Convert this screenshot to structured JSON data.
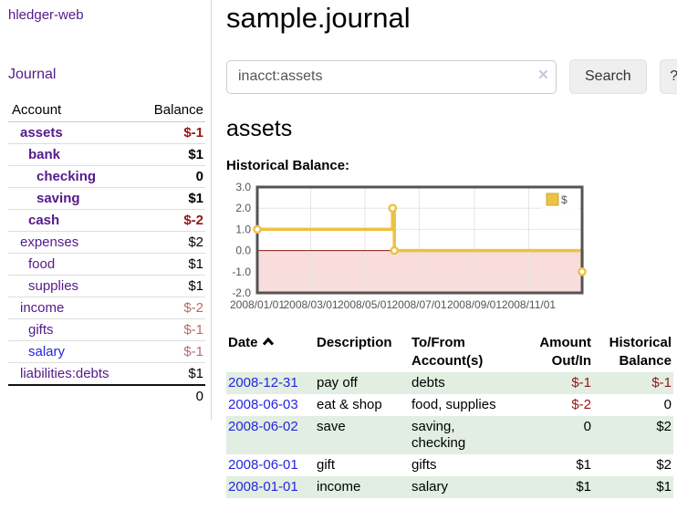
{
  "sidebar": {
    "app_title": "hledger-web",
    "journal_label": "Journal",
    "accounts_table": {
      "headers": {
        "account": "Account",
        "balance": "Balance"
      },
      "rows": [
        {
          "account": "assets",
          "balance": "$-1",
          "indent": 1,
          "bold": true,
          "link_color": "purple",
          "balance_tone": "negative-strong"
        },
        {
          "account": "bank",
          "balance": "$1",
          "indent": 2,
          "bold": true,
          "link_color": "purple",
          "balance_tone": "normal"
        },
        {
          "account": "checking",
          "balance": "0",
          "indent": 3,
          "bold": true,
          "link_color": "purple",
          "balance_tone": "normal"
        },
        {
          "account": "saving",
          "balance": "$1",
          "indent": 3,
          "bold": true,
          "link_color": "purple",
          "balance_tone": "normal"
        },
        {
          "account": "cash",
          "balance": "$-2",
          "indent": 2,
          "bold": true,
          "link_color": "purple",
          "balance_tone": "negative-strong"
        },
        {
          "account": "expenses",
          "balance": "$2",
          "indent": 1,
          "bold": false,
          "link_color": "purple",
          "balance_tone": "normal"
        },
        {
          "account": "food",
          "balance": "$1",
          "indent": 2,
          "bold": false,
          "link_color": "purple",
          "balance_tone": "normal"
        },
        {
          "account": "supplies",
          "balance": "$1",
          "indent": 2,
          "bold": false,
          "link_color": "purple",
          "balance_tone": "normal"
        },
        {
          "account": "income",
          "balance": "$-2",
          "indent": 1,
          "bold": false,
          "link_color": "purple",
          "balance_tone": "negative-muted"
        },
        {
          "account": "gifts",
          "balance": "$-1",
          "indent": 2,
          "bold": false,
          "link_color": "purple",
          "balance_tone": "negative-muted"
        },
        {
          "account": "salary",
          "balance": "$-1",
          "indent": 2,
          "bold": false,
          "link_color": "blue",
          "balance_tone": "negative-muted"
        },
        {
          "account": "liabilities:debts",
          "balance": "$1",
          "indent": 1,
          "bold": false,
          "link_color": "purple",
          "balance_tone": "normal"
        }
      ],
      "total": "0"
    }
  },
  "header": {
    "title": "sample.journal"
  },
  "search": {
    "query": "inacct:assets",
    "clear_icon": "×",
    "search_label": "Search",
    "help_label": "?"
  },
  "account_view": {
    "heading": "assets",
    "chart_title": "Historical Balance:"
  },
  "chart_data": {
    "type": "line",
    "style": "step",
    "title": "Historical Balance",
    "series": [
      {
        "name": "$",
        "color": "#edc240",
        "points": [
          [
            "2008-01-01",
            1
          ],
          [
            "2008-06-01",
            2
          ],
          [
            "2008-06-03",
            0
          ],
          [
            "2008-12-31",
            -1
          ]
        ]
      }
    ],
    "y_ticks": [
      3.0,
      2.0,
      1.0,
      0.0,
      -1.0,
      -2.0
    ],
    "x_ticks": [
      "2008/01/01",
      "2008/03/01",
      "2008/05/01",
      "2008/07/01",
      "2008/09/01",
      "2008/11/01"
    ],
    "ylim": [
      -2,
      3
    ],
    "xlim": [
      "2008-01-01",
      "2008-12-31"
    ],
    "grid": true,
    "legend_position": "top-right",
    "negative_region_color": "#f9dcdc",
    "zero_line_color": "#8b1a1a",
    "border_color": "#545454",
    "gridline_color": "#e6e6e6"
  },
  "register": {
    "headers": {
      "date": "Date",
      "description": "Description",
      "accounts": "To/From Account(s)",
      "amount": "Amount Out/In",
      "balance": "Historical Balance"
    },
    "sort_icon": "chevron-up",
    "rows": [
      {
        "date": "2008-12-31",
        "description": "pay off",
        "accounts": "debts",
        "amount": "$-1",
        "balance": "$-1",
        "amount_negative": true,
        "balance_negative": true
      },
      {
        "date": "2008-06-03",
        "description": "eat & shop",
        "accounts": "food, supplies",
        "amount": "$-2",
        "balance": "0",
        "amount_negative": true,
        "balance_negative": false
      },
      {
        "date": "2008-06-02",
        "description": "save",
        "accounts": "saving, checking",
        "amount": "0",
        "balance": "$2",
        "amount_negative": false,
        "balance_negative": false
      },
      {
        "date": "2008-06-01",
        "description": "gift",
        "accounts": "gifts",
        "amount": "$1",
        "balance": "$2",
        "amount_negative": false,
        "balance_negative": false
      },
      {
        "date": "2008-01-01",
        "description": "income",
        "accounts": "salary",
        "amount": "$1",
        "balance": "$1",
        "amount_negative": false,
        "balance_negative": false
      }
    ]
  },
  "colors": {
    "accent_purple": "#551a8b",
    "link_blue": "#2525e0",
    "negative_strong": "#951616",
    "negative_muted": "#b76c6c",
    "row_stripe_green": "#e1eee1",
    "chart_series_yellow": "#edc240",
    "chart_negative_region": "#f9dcdc",
    "chart_zero_line": "#8b1a1a"
  }
}
